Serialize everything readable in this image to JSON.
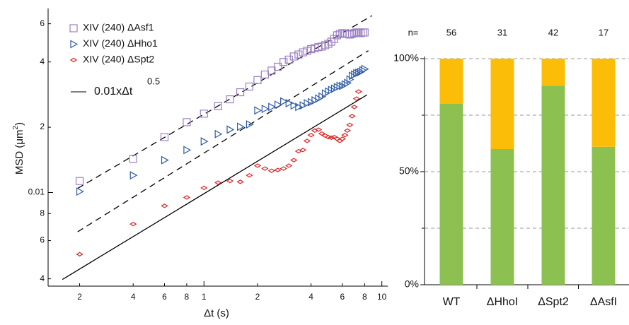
{
  "chart_data": [
    {
      "type": "scatter",
      "log_x": true,
      "log_y": true,
      "xlabel": "Δt (s)",
      "ylabel": [
        "MSD (μm",
        "2",
        ")"
      ],
      "xlim": [
        0.133,
        10.5
      ],
      "ylim": [
        0.0037,
        0.069
      ],
      "xticks": [
        {
          "value": 0.2,
          "label": "2"
        },
        {
          "value": 0.4,
          "label": "4"
        },
        {
          "value": 0.6,
          "label": "6"
        },
        {
          "value": 0.8,
          "label": "8"
        },
        1,
        {
          "value": 2,
          "label": "2"
        },
        {
          "value": 4,
          "label": "4"
        },
        {
          "value": 6,
          "label": "6"
        },
        {
          "value": 8,
          "label": "8"
        },
        10
      ],
      "yticks": [
        {
          "value": 0.004,
          "label": "4"
        },
        {
          "value": 0.006,
          "label": "6"
        },
        {
          "value": 0.008,
          "label": "8"
        },
        0.01,
        {
          "value": 0.02,
          "label": "2"
        },
        {
          "value": 0.04,
          "label": "4"
        },
        {
          "value": 0.06,
          "label": "6"
        }
      ],
      "x": [
        0.2,
        0.4,
        0.6,
        0.8,
        1.0,
        1.2,
        1.4,
        1.6,
        1.8,
        2.0,
        2.2,
        2.4,
        2.6,
        2.8,
        3.0,
        3.2,
        3.4,
        3.6,
        3.8,
        4.0,
        4.2,
        4.4,
        4.6,
        4.8,
        5.0,
        5.2,
        5.4,
        5.6,
        5.8,
        6.0,
        6.2,
        6.4,
        6.6,
        6.8,
        7.0,
        7.2,
        7.4,
        7.6,
        7.8,
        8.0
      ],
      "series": [
        {
          "name": "XIV (240) ΔAsf1",
          "marker": "square",
          "color": "#9b7fc2",
          "values": [
            0.0113,
            0.0143,
            0.018,
            0.0211,
            0.0231,
            0.025,
            0.0269,
            0.029,
            0.0308,
            0.033,
            0.035,
            0.0365,
            0.038,
            0.04,
            0.041,
            0.0424,
            0.0433,
            0.0443,
            0.045,
            0.0458,
            0.0464,
            0.0468,
            0.0471,
            0.0478,
            0.0485,
            0.0496,
            0.0511,
            0.0531,
            0.0539,
            0.0543,
            0.0539,
            0.0539,
            0.0535,
            0.0539,
            0.0543,
            0.0547,
            0.0547,
            0.0543,
            0.0547,
            0.0547
          ]
        },
        {
          "name": "XIV (240) ΔHho1",
          "marker": "triangle",
          "color": "#2e5ba8",
          "values": [
            0.0101,
            0.012,
            0.0141,
            0.0157,
            0.0172,
            0.0186,
            0.0195,
            0.0201,
            0.0206,
            0.0239,
            0.0243,
            0.0248,
            0.0254,
            0.0263,
            0.0258,
            0.0252,
            0.0248,
            0.0252,
            0.0258,
            0.0261,
            0.0266,
            0.0271,
            0.0277,
            0.0286,
            0.0292,
            0.0297,
            0.0301,
            0.0306,
            0.031,
            0.031,
            0.0315,
            0.032,
            0.0332,
            0.0345,
            0.035,
            0.0355,
            0.0357,
            0.036,
            0.0366,
            0.0371
          ]
        },
        {
          "name": "XIV (240) ΔSpt2",
          "marker": "diamond",
          "color": "#e02424",
          "values": [
            0.00519,
            0.00715,
            0.00868,
            0.00949,
            0.0105,
            0.0111,
            0.0113,
            0.0112,
            0.012,
            0.0133,
            0.0129,
            0.0126,
            0.0127,
            0.0129,
            0.0133,
            0.0141,
            0.0155,
            0.0157,
            0.0173,
            0.0184,
            0.0193,
            0.0195,
            0.0187,
            0.0183,
            0.018,
            0.0179,
            0.018,
            0.0177,
            0.0173,
            0.0177,
            0.0184,
            0.0193,
            0.0205,
            0.0225,
            0.0248,
            0.0271,
            0.0292,
            null,
            null,
            null
          ]
        }
      ],
      "lines": [
        {
          "x": [
            0.16,
            8.25
          ],
          "y": [
            0.00397,
            0.0282
          ],
          "dash": false
        },
        {
          "x": [
            0.195,
            8.4
          ],
          "y": [
            0.00659,
            0.0451
          ],
          "dash": true
        },
        {
          "x": [
            0.195,
            8.8
          ],
          "y": [
            0.01045,
            0.0654
          ],
          "dash": true
        }
      ],
      "line_label": "0.01xΔt",
      "line_label_exponent": "0.5"
    },
    {
      "type": "stacked_bar",
      "n_label": "n=",
      "n": [
        56,
        31,
        42,
        17
      ],
      "categories": [
        "WT",
        "ΔHhoI",
        "ΔSpt2",
        "ΔAsfI"
      ],
      "series": [
        {
          "color": "#8cc152",
          "values": [
            80,
            60,
            88,
            61
          ]
        },
        {
          "color": "#fbbd08",
          "values": [
            20,
            40,
            12,
            39
          ]
        }
      ],
      "ylim": [
        0,
        100
      ],
      "yticks": [
        {
          "value": 0,
          "label": "0%"
        },
        {
          "value": 50,
          "label": "50%"
        },
        {
          "value": 100,
          "label": "100%"
        }
      ],
      "minor_yticks": [
        25,
        75
      ],
      "grid": [
        25,
        50,
        75,
        100
      ]
    }
  ]
}
